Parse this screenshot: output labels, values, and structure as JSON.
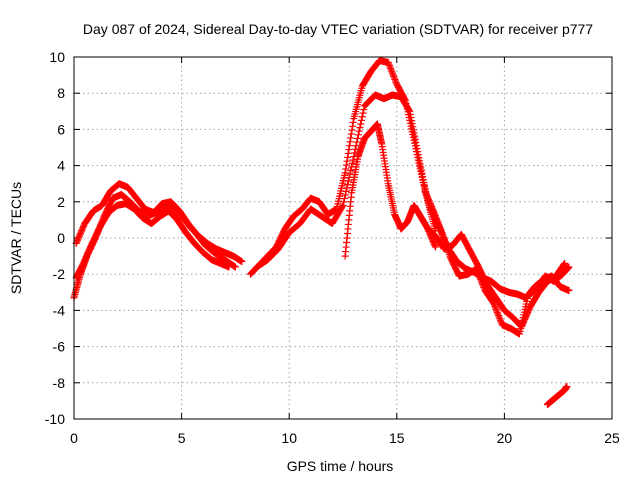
{
  "chart_data": {
    "type": "scatter",
    "title": "Day 087 of 2024, Sidereal Day-to-day VTEC variation (SDTVAR) for receiver p777",
    "xlabel": "GPS time / hours",
    "ylabel": "SDTVAR / TECUs",
    "xlim": [
      0,
      25
    ],
    "ylim": [
      -10,
      10
    ],
    "xticks": [
      0,
      5,
      10,
      15,
      20,
      25
    ],
    "yticks": [
      -10,
      -8,
      -6,
      -4,
      -2,
      0,
      2,
      4,
      6,
      8,
      10
    ],
    "xtick_labels": [
      "0",
      "5",
      "10",
      "15",
      "20",
      "25"
    ],
    "ytick_labels": [
      "-10",
      "-8",
      "-6",
      "-4",
      "-2",
      "0",
      "2",
      "4",
      "6",
      "8",
      "10"
    ],
    "grid": true,
    "marker": "+",
    "color": "#ff0000",
    "series": [
      {
        "name": "track-a",
        "x": [
          0.0,
          0.3,
          0.6,
          1.0,
          1.4,
          1.8,
          2.2,
          2.6,
          3.0,
          3.4,
          3.8,
          4.2,
          4.6,
          5.0,
          5.4,
          5.8,
          6.2,
          6.6,
          7.0,
          7.4,
          7.8
        ],
        "y": [
          -3.3,
          -2.0,
          -1.0,
          0.0,
          1.2,
          2.2,
          2.4,
          2.0,
          1.5,
          1.2,
          1.4,
          1.7,
          1.6,
          1.2,
          0.6,
          0.1,
          -0.3,
          -0.6,
          -0.8,
          -1.0,
          -1.3
        ]
      },
      {
        "name": "track-b",
        "x": [
          0.1,
          0.5,
          0.9,
          1.3,
          1.7,
          2.1,
          2.5,
          2.9,
          3.3,
          3.7,
          4.1,
          4.5,
          4.9,
          5.3,
          5.7,
          6.1,
          6.5,
          7.0,
          7.5
        ],
        "y": [
          -0.3,
          0.8,
          1.5,
          1.8,
          2.6,
          3.0,
          2.8,
          2.2,
          1.6,
          1.4,
          1.9,
          2.0,
          1.5,
          0.8,
          0.2,
          -0.4,
          -0.8,
          -1.2,
          -1.6
        ]
      },
      {
        "name": "track-c",
        "x": [
          0.1,
          0.4,
          0.8,
          1.2,
          1.6,
          2.0,
          2.4,
          2.8,
          3.2,
          3.6,
          4.0,
          4.4,
          4.8,
          5.2,
          5.6,
          6.0,
          6.4,
          6.8,
          7.2
        ],
        "y": [
          -2.2,
          -1.5,
          -0.4,
          0.6,
          1.4,
          1.8,
          1.9,
          1.6,
          1.1,
          0.8,
          1.2,
          1.5,
          1.0,
          0.3,
          -0.3,
          -0.8,
          -1.2,
          -1.4,
          -1.6
        ]
      },
      {
        "name": "track-d",
        "x": [
          8.2,
          8.6,
          9.0,
          9.4,
          9.8,
          10.2,
          10.6,
          11.0,
          11.4,
          11.8,
          12.2,
          12.6,
          13.0,
          13.4,
          13.8,
          14.2,
          14.6,
          15.0,
          15.4,
          15.8,
          16.2,
          16.6
        ],
        "y": [
          -2.0,
          -1.5,
          -1.0,
          -0.5,
          0.5,
          1.2,
          1.6,
          2.2,
          2.0,
          1.3,
          1.6,
          3.6,
          6.6,
          8.4,
          9.2,
          9.8,
          9.7,
          8.5,
          7.6,
          5.4,
          3.2,
          1.4
        ]
      },
      {
        "name": "track-e",
        "x": [
          8.5,
          9.0,
          9.5,
          10.0,
          10.5,
          11.0,
          11.5,
          12.0,
          12.5,
          13.0,
          13.5,
          14.0,
          14.4,
          14.8,
          15.2,
          15.6,
          16.0,
          16.4,
          16.8
        ],
        "y": [
          -1.6,
          -1.2,
          -0.6,
          0.3,
          0.8,
          1.6,
          1.2,
          0.8,
          1.8,
          4.5,
          7.3,
          7.9,
          7.7,
          7.9,
          7.8,
          7.0,
          4.6,
          2.2,
          0.4
        ]
      },
      {
        "name": "track-f",
        "x": [
          12.6,
          12.9,
          13.2,
          13.5,
          13.8,
          14.1,
          14.3,
          14.6,
          14.9,
          15.2,
          15.5,
          15.8,
          16.1,
          16.4,
          16.8
        ],
        "y": [
          -1.0,
          2.5,
          4.5,
          5.5,
          5.9,
          6.3,
          5.2,
          3.0,
          1.3,
          0.5,
          0.9,
          1.8,
          1.2,
          0.6,
          -0.5
        ]
      },
      {
        "name": "track-g",
        "x": [
          16.3,
          16.7,
          17.1,
          17.5,
          17.9,
          18.3,
          18.7,
          19.1,
          19.5,
          19.9,
          20.3,
          20.7,
          21.1,
          21.5,
          21.9,
          22.3,
          22.7,
          23.0
        ],
        "y": [
          2.6,
          1.5,
          0.3,
          -1.1,
          -2.1,
          -2.0,
          -1.7,
          -2.9,
          -3.6,
          -4.8,
          -5.0,
          -5.3,
          -3.2,
          -2.8,
          -2.1,
          -2.4,
          -2.0,
          -1.6
        ]
      },
      {
        "name": "track-h",
        "x": [
          16.4,
          16.8,
          17.2,
          17.6,
          18.0,
          18.4,
          18.8,
          19.2,
          19.6,
          20.0,
          20.4,
          20.8,
          21.2,
          21.6,
          22.0,
          22.4,
          22.8
        ],
        "y": [
          0.6,
          0.1,
          -0.6,
          -0.4,
          0.2,
          -0.7,
          -1.6,
          -2.6,
          -3.3,
          -4.0,
          -4.4,
          -4.9,
          -3.8,
          -3.0,
          -2.4,
          -2.1,
          -1.4
        ]
      },
      {
        "name": "track-i",
        "x": [
          16.6,
          17.0,
          17.4,
          17.8,
          18.2,
          18.6,
          19.0,
          19.4,
          19.8,
          20.2,
          20.6,
          21.0,
          21.4,
          21.8,
          22.2,
          22.6,
          23.0
        ],
        "y": [
          1.6,
          0.5,
          -0.6,
          -1.3,
          -1.7,
          -1.9,
          -2.2,
          -2.4,
          -2.8,
          -3.0,
          -3.1,
          -3.3,
          -2.7,
          -2.3,
          -2.1,
          -2.7,
          -2.9
        ]
      },
      {
        "name": "track-j",
        "x": [
          22.0,
          22.2,
          22.4,
          22.6,
          22.8,
          22.9
        ],
        "y": [
          -9.2,
          -9.0,
          -8.8,
          -8.6,
          -8.4,
          -8.2
        ]
      }
    ]
  }
}
